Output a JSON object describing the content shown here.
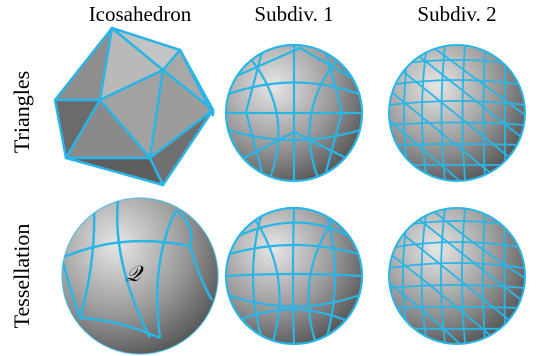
{
  "columns": [
    "Icosahedron",
    "Subdiv. 1",
    "Subdiv. 2"
  ],
  "rows": [
    "Triangles",
    "Tessellation"
  ],
  "region_label": "𝒬",
  "colors": {
    "edge": "#29b6e6",
    "face_light": "#c9c9c9",
    "face_dark": "#5a5a5a",
    "background": "#ffffff"
  }
}
